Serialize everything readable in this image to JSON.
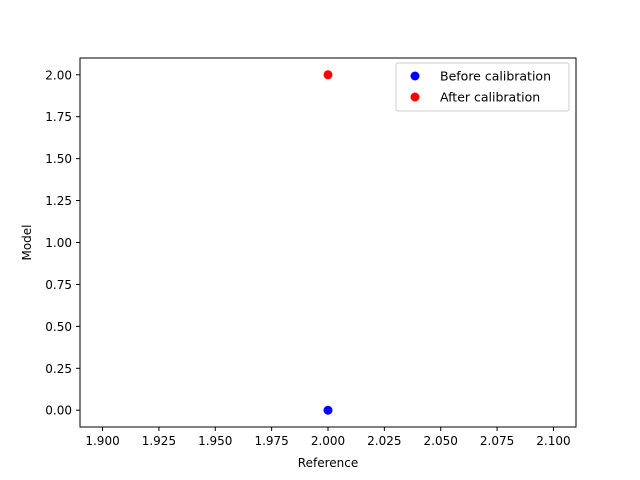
{
  "chart_data": {
    "type": "scatter",
    "title": "",
    "xlabel": "Reference",
    "ylabel": "Model",
    "xlim": [
      1.89,
      2.11
    ],
    "ylim": [
      -0.1,
      2.1
    ],
    "xticks": [
      1.9,
      1.925,
      1.95,
      1.975,
      2.0,
      2.025,
      2.05,
      2.075,
      2.1
    ],
    "xtick_labels": [
      "1.900",
      "1.925",
      "1.950",
      "1.975",
      "2.000",
      "2.025",
      "2.050",
      "2.075",
      "2.100"
    ],
    "yticks": [
      0.0,
      0.25,
      0.5,
      0.75,
      1.0,
      1.25,
      1.5,
      1.75,
      2.0
    ],
    "ytick_labels": [
      "0.00",
      "0.25",
      "0.50",
      "0.75",
      "1.00",
      "1.25",
      "1.50",
      "1.75",
      "2.00"
    ],
    "grid": false,
    "legend_position": "upper right",
    "series": [
      {
        "name": "Before calibration",
        "color": "#0000ff",
        "points": [
          {
            "x": 2.0,
            "y": 0.0
          }
        ]
      },
      {
        "name": "After calibration",
        "color": "#ff0000",
        "points": [
          {
            "x": 2.0,
            "y": 2.0
          }
        ]
      }
    ]
  }
}
